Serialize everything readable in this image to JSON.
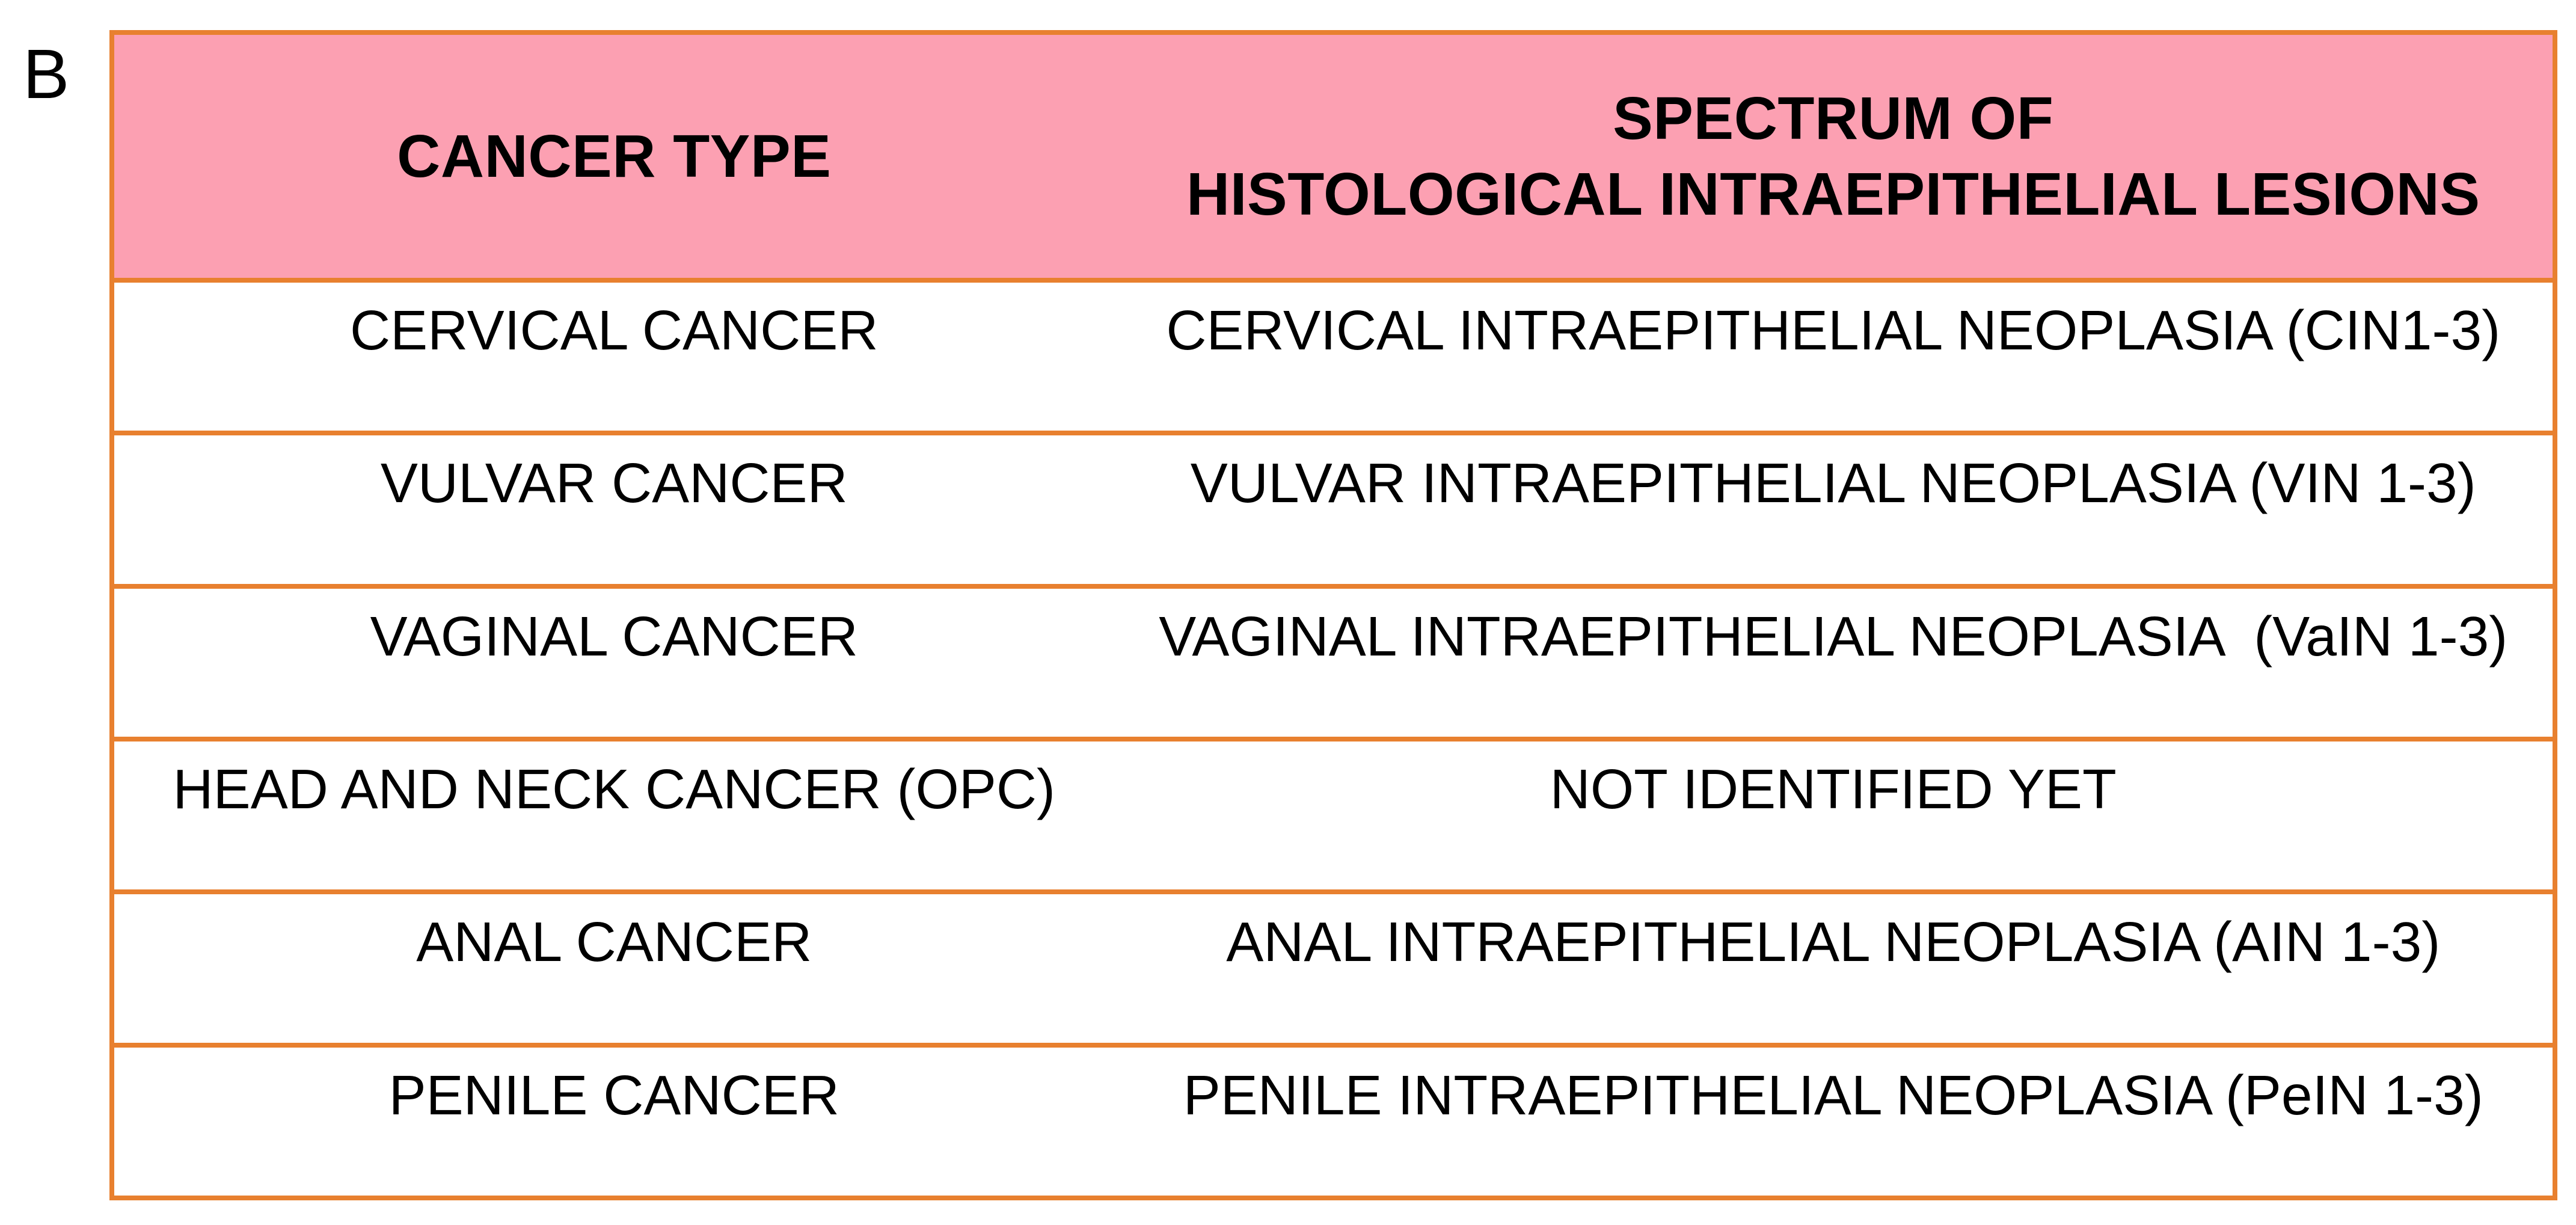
{
  "panel_label": "B",
  "colors": {
    "header_bg": "#FCA0B2",
    "border": "#E8802F",
    "text": "#000000",
    "page_bg": "#FFFFFF"
  },
  "chart_data": {
    "type": "table",
    "columns": [
      "CANCER TYPE",
      "SPECTRUM OF HISTOLOGICAL INTRAEPITHELIAL LESIONS"
    ],
    "rows": [
      [
        "CERVICAL CANCER",
        "CERVICAL INTRAEPITHELIAL NEOPLASIA (CIN1-3)"
      ],
      [
        "VULVAR CANCER",
        "VULVAR INTRAEPITHELIAL NEOPLASIA (VIN 1-3)"
      ],
      [
        "VAGINAL CANCER",
        "VAGINAL INTRAEPITHELIAL NEOPLASIA  (VaIN 1-3)"
      ],
      [
        "HEAD AND NECK CANCER (OPC)",
        "NOT IDENTIFIED YET"
      ],
      [
        "ANAL CANCER",
        "ANAL INTRAEPITHELIAL NEOPLASIA (AIN 1-3)"
      ],
      [
        "PENILE CANCER",
        "PENILE INTRAEPITHELIAL NEOPLASIA (PeIN 1-3)"
      ]
    ]
  },
  "table": {
    "header": {
      "col1": "CANCER TYPE",
      "col2_line1": "SPECTRUM OF",
      "col2_line2": "HISTOLOGICAL INTRAEPITHELIAL LESIONS"
    },
    "rows": [
      {
        "cancer_type": "CERVICAL CANCER",
        "lesion": "CERVICAL INTRAEPITHELIAL NEOPLASIA (CIN1-3)"
      },
      {
        "cancer_type": "VULVAR CANCER",
        "lesion": "VULVAR INTRAEPITHELIAL NEOPLASIA (VIN 1-3)"
      },
      {
        "cancer_type": "VAGINAL CANCER",
        "lesion": "VAGINAL INTRAEPITHELIAL NEOPLASIA  (VaIN 1-3)"
      },
      {
        "cancer_type": "HEAD AND NECK CANCER (OPC)",
        "lesion": "NOT IDENTIFIED YET"
      },
      {
        "cancer_type": "ANAL CANCER",
        "lesion": "ANAL INTRAEPITHELIAL NEOPLASIA (AIN 1-3)"
      },
      {
        "cancer_type": "PENILE CANCER",
        "lesion": "PENILE INTRAEPITHELIAL NEOPLASIA (PeIN 1-3)"
      }
    ]
  }
}
